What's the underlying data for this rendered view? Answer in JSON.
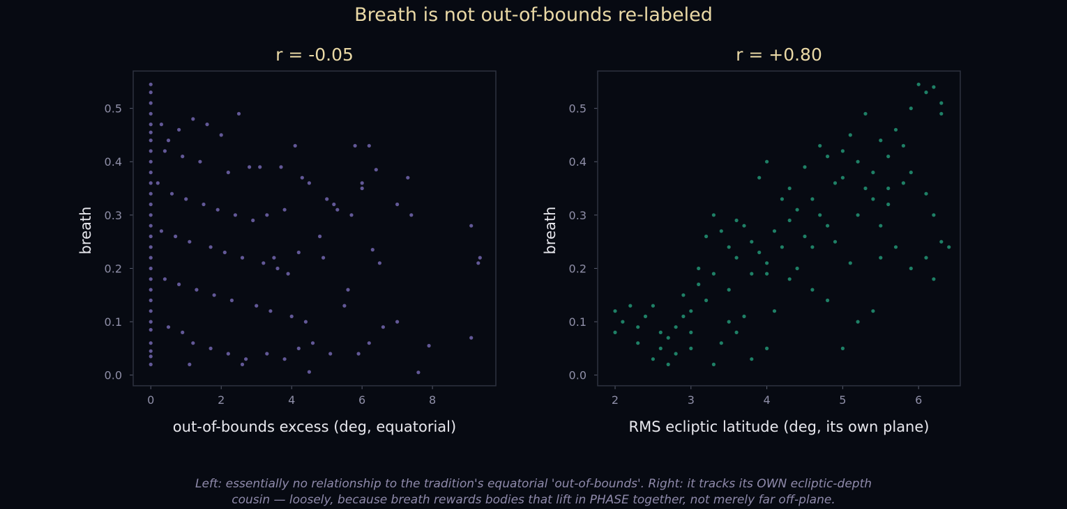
{
  "figure": {
    "suptitle": "Breath is not out-of-bounds re-labeled",
    "caption_line1": "Left: essentially no relationship to the tradition's equatorial 'out-of-bounds'. Right: it tracks its OWN ecliptic-depth",
    "caption_line2": "cousin — loosely, because breath rewards bodies that lift in PHASE together, not merely far off-plane."
  },
  "chart_data": [
    {
      "type": "scatter",
      "title": "r = -0.05",
      "xlabel": "out-of-bounds excess (deg, equatorial)",
      "ylabel": "breath",
      "xlim": [
        -0.5,
        9.8
      ],
      "ylim": [
        -0.02,
        0.57
      ],
      "xticks": [
        0,
        2,
        4,
        6,
        8
      ],
      "yticks": [
        0.0,
        0.1,
        0.2,
        0.3,
        0.4,
        0.5
      ],
      "color": "#a08cf0",
      "grid": false,
      "points": [
        [
          0,
          0.545
        ],
        [
          0,
          0.53
        ],
        [
          0,
          0.51
        ],
        [
          0,
          0.49
        ],
        [
          0,
          0.47
        ],
        [
          0,
          0.455
        ],
        [
          0,
          0.44
        ],
        [
          0,
          0.42
        ],
        [
          0,
          0.4
        ],
        [
          0,
          0.38
        ],
        [
          0,
          0.36
        ],
        [
          0,
          0.34
        ],
        [
          0,
          0.32
        ],
        [
          0,
          0.3
        ],
        [
          0,
          0.28
        ],
        [
          0,
          0.26
        ],
        [
          0,
          0.24
        ],
        [
          0,
          0.22
        ],
        [
          0,
          0.2
        ],
        [
          0,
          0.18
        ],
        [
          0,
          0.16
        ],
        [
          0,
          0.14
        ],
        [
          0,
          0.12
        ],
        [
          0,
          0.1
        ],
        [
          0,
          0.085
        ],
        [
          0,
          0.06
        ],
        [
          0,
          0.045
        ],
        [
          0,
          0.035
        ],
        [
          0,
          0.02
        ],
        [
          0.3,
          0.47
        ],
        [
          0.5,
          0.44
        ],
        [
          0.8,
          0.46
        ],
        [
          1.2,
          0.48
        ],
        [
          1.6,
          0.47
        ],
        [
          2.0,
          0.45
        ],
        [
          2.5,
          0.49
        ],
        [
          0.4,
          0.42
        ],
        [
          0.9,
          0.41
        ],
        [
          1.4,
          0.4
        ],
        [
          2.2,
          0.38
        ],
        [
          2.8,
          0.39
        ],
        [
          3.1,
          0.39
        ],
        [
          3.7,
          0.39
        ],
        [
          4.1,
          0.43
        ],
        [
          4.3,
          0.37
        ],
        [
          4.5,
          0.36
        ],
        [
          5.0,
          0.33
        ],
        [
          5.2,
          0.32
        ],
        [
          5.8,
          0.43
        ],
        [
          6.2,
          0.43
        ],
        [
          6.4,
          0.385
        ],
        [
          7.3,
          0.37
        ],
        [
          7.0,
          0.32
        ],
        [
          7.4,
          0.3
        ],
        [
          9.1,
          0.28
        ],
        [
          9.35,
          0.22
        ],
        [
          9.3,
          0.21
        ],
        [
          0.2,
          0.36
        ],
        [
          0.6,
          0.34
        ],
        [
          1.0,
          0.33
        ],
        [
          1.5,
          0.32
        ],
        [
          1.9,
          0.31
        ],
        [
          2.4,
          0.3
        ],
        [
          2.9,
          0.29
        ],
        [
          3.3,
          0.3
        ],
        [
          3.8,
          0.31
        ],
        [
          4.8,
          0.26
        ],
        [
          5.3,
          0.31
        ],
        [
          5.7,
          0.3
        ],
        [
          6.0,
          0.36
        ],
        [
          6.0,
          0.35
        ],
        [
          0.3,
          0.27
        ],
        [
          0.7,
          0.26
        ],
        [
          1.1,
          0.25
        ],
        [
          1.7,
          0.24
        ],
        [
          2.1,
          0.23
        ],
        [
          2.6,
          0.22
        ],
        [
          3.2,
          0.21
        ],
        [
          3.5,
          0.22
        ],
        [
          3.6,
          0.2
        ],
        [
          3.9,
          0.19
        ],
        [
          4.2,
          0.23
        ],
        [
          4.9,
          0.22
        ],
        [
          6.3,
          0.235
        ],
        [
          6.5,
          0.21
        ],
        [
          0.4,
          0.18
        ],
        [
          0.8,
          0.17
        ],
        [
          1.3,
          0.16
        ],
        [
          1.8,
          0.15
        ],
        [
          2.3,
          0.14
        ],
        [
          3.0,
          0.13
        ],
        [
          3.4,
          0.12
        ],
        [
          4.0,
          0.11
        ],
        [
          4.4,
          0.1
        ],
        [
          5.6,
          0.16
        ],
        [
          5.5,
          0.13
        ],
        [
          6.6,
          0.09
        ],
        [
          7.0,
          0.1
        ],
        [
          0.5,
          0.09
        ],
        [
          0.9,
          0.08
        ],
        [
          1.2,
          0.06
        ],
        [
          1.7,
          0.05
        ],
        [
          2.2,
          0.04
        ],
        [
          2.7,
          0.03
        ],
        [
          3.3,
          0.04
        ],
        [
          3.8,
          0.03
        ],
        [
          4.2,
          0.05
        ],
        [
          4.6,
          0.06
        ],
        [
          5.1,
          0.04
        ],
        [
          5.9,
          0.04
        ],
        [
          6.2,
          0.06
        ],
        [
          7.9,
          0.055
        ],
        [
          9.1,
          0.07
        ],
        [
          7.6,
          0.005
        ],
        [
          4.5,
          0.006
        ],
        [
          1.1,
          0.02
        ],
        [
          2.6,
          0.02
        ]
      ]
    },
    {
      "type": "scatter",
      "title": "r = +0.80",
      "xlabel": "RMS ecliptic latitude (deg, its own plane)",
      "ylabel": "breath",
      "xlim": [
        1.77,
        6.55
      ],
      "ylim": [
        -0.02,
        0.57
      ],
      "xticks": [
        2,
        3,
        4,
        5,
        6
      ],
      "yticks": [
        0.0,
        0.1,
        0.2,
        0.3,
        0.4,
        0.5
      ],
      "color": "#2fcf9f",
      "grid": false,
      "points": [
        [
          2.0,
          0.12
        ],
        [
          2.0,
          0.08
        ],
        [
          2.1,
          0.1
        ],
        [
          2.2,
          0.13
        ],
        [
          2.3,
          0.09
        ],
        [
          2.3,
          0.06
        ],
        [
          2.4,
          0.11
        ],
        [
          2.5,
          0.03
        ],
        [
          2.5,
          0.13
        ],
        [
          2.6,
          0.05
        ],
        [
          2.7,
          0.07
        ],
        [
          2.7,
          0.02
        ],
        [
          2.8,
          0.04
        ],
        [
          2.8,
          0.09
        ],
        [
          2.9,
          0.15
        ],
        [
          2.9,
          0.11
        ],
        [
          3.0,
          0.12
        ],
        [
          3.0,
          0.08
        ],
        [
          3.1,
          0.17
        ],
        [
          3.1,
          0.2
        ],
        [
          3.2,
          0.14
        ],
        [
          3.3,
          0.02
        ],
        [
          3.4,
          0.06
        ],
        [
          3.5,
          0.1
        ],
        [
          3.6,
          0.08
        ],
        [
          3.7,
          0.11
        ],
        [
          3.8,
          0.03
        ],
        [
          4.0,
          0.05
        ],
        [
          3.2,
          0.26
        ],
        [
          3.3,
          0.3
        ],
        [
          3.4,
          0.27
        ],
        [
          3.5,
          0.24
        ],
        [
          3.6,
          0.22
        ],
        [
          3.7,
          0.28
        ],
        [
          3.8,
          0.25
        ],
        [
          3.9,
          0.23
        ],
        [
          4.0,
          0.21
        ],
        [
          4.0,
          0.19
        ],
        [
          4.1,
          0.27
        ],
        [
          4.2,
          0.33
        ],
        [
          4.3,
          0.29
        ],
        [
          4.3,
          0.35
        ],
        [
          4.4,
          0.31
        ],
        [
          4.5,
          0.26
        ],
        [
          4.6,
          0.33
        ],
        [
          4.7,
          0.3
        ],
        [
          4.8,
          0.28
        ],
        [
          4.9,
          0.25
        ],
        [
          5.0,
          0.37
        ],
        [
          5.0,
          0.42
        ],
        [
          5.1,
          0.45
        ],
        [
          5.2,
          0.4
        ],
        [
          5.3,
          0.49
        ],
        [
          5.3,
          0.35
        ],
        [
          5.4,
          0.38
        ],
        [
          5.5,
          0.44
        ],
        [
          5.6,
          0.41
        ],
        [
          5.7,
          0.46
        ],
        [
          5.8,
          0.43
        ],
        [
          5.9,
          0.5
        ],
        [
          6.0,
          0.545
        ],
        [
          6.1,
          0.53
        ],
        [
          6.2,
          0.54
        ],
        [
          6.3,
          0.51
        ],
        [
          6.3,
          0.49
        ],
        [
          6.2,
          0.3
        ],
        [
          6.1,
          0.34
        ],
        [
          6.3,
          0.25
        ],
        [
          6.4,
          0.24
        ],
        [
          6.1,
          0.22
        ],
        [
          6.2,
          0.18
        ],
        [
          5.9,
          0.2
        ],
        [
          5.7,
          0.24
        ],
        [
          5.5,
          0.22
        ],
        [
          5.4,
          0.12
        ],
        [
          5.0,
          0.05
        ],
        [
          5.2,
          0.1
        ],
        [
          4.6,
          0.16
        ],
        [
          4.3,
          0.18
        ],
        [
          4.8,
          0.14
        ],
        [
          4.1,
          0.12
        ],
        [
          4.4,
          0.2
        ],
        [
          3.9,
          0.37
        ],
        [
          4.0,
          0.4
        ],
        [
          4.5,
          0.39
        ],
        [
          4.7,
          0.43
        ],
        [
          4.8,
          0.41
        ],
        [
          5.6,
          0.32
        ],
        [
          5.8,
          0.36
        ],
        [
          5.2,
          0.3
        ],
        [
          5.5,
          0.28
        ],
        [
          3.0,
          0.05
        ],
        [
          2.6,
          0.08
        ],
        [
          3.5,
          0.16
        ],
        [
          3.8,
          0.19
        ],
        [
          4.6,
          0.24
        ],
        [
          5.1,
          0.21
        ],
        [
          5.6,
          0.35
        ],
        [
          5.9,
          0.38
        ],
        [
          5.4,
          0.33
        ],
        [
          4.9,
          0.36
        ],
        [
          4.2,
          0.24
        ],
        [
          3.6,
          0.29
        ],
        [
          3.3,
          0.19
        ]
      ]
    }
  ]
}
